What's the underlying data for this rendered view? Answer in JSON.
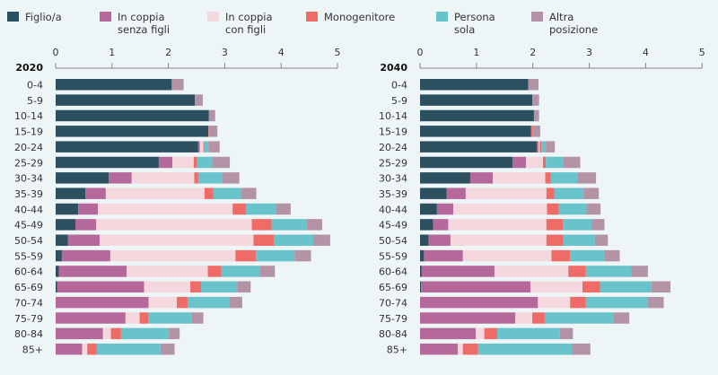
{
  "chart_data": [
    {
      "type": "bar",
      "orientation": "horizontal",
      "stacked": true,
      "title": "2020",
      "xlabel": "",
      "ylabel": "",
      "xlim": [
        0,
        5
      ],
      "xticks": [
        "0",
        "1",
        "2",
        "3",
        "4",
        "5"
      ],
      "categories": [
        "0-4",
        "5-9",
        "10-14",
        "15-19",
        "20-24",
        "25-29",
        "30-34",
        "35-39",
        "40-44",
        "45-49",
        "50-54",
        "55-59",
        "60-64",
        "65-69",
        "70-74",
        "75-79",
        "80-84",
        "85+"
      ],
      "series": [
        {
          "name": "Figlio/a",
          "values": [
            2.06,
            2.47,
            2.72,
            2.71,
            2.53,
            1.83,
            0.94,
            0.53,
            0.4,
            0.35,
            0.22,
            0.11,
            0.06,
            0.03,
            0,
            0,
            0,
            0
          ]
        },
        {
          "name": "In coppia senza figli",
          "values": [
            0,
            0,
            0,
            0,
            0.03,
            0.24,
            0.41,
            0.36,
            0.35,
            0.37,
            0.56,
            0.86,
            1.2,
            1.54,
            1.65,
            1.24,
            0.84,
            0.47
          ]
        },
        {
          "name": "In coppia con figli",
          "values": [
            0,
            0,
            0,
            0,
            0.06,
            0.38,
            1.11,
            1.75,
            2.39,
            2.76,
            2.73,
            2.22,
            1.44,
            0.82,
            0.5,
            0.25,
            0.14,
            0.09
          ]
        },
        {
          "name": "Monogenitore",
          "values": [
            0,
            0,
            0,
            0.01,
            0.02,
            0.06,
            0.07,
            0.16,
            0.24,
            0.35,
            0.36,
            0.36,
            0.24,
            0.19,
            0.19,
            0.15,
            0.18,
            0.17
          ]
        },
        {
          "name": "Persona sola",
          "values": [
            0,
            0,
            0,
            0,
            0.07,
            0.27,
            0.42,
            0.49,
            0.53,
            0.63,
            0.7,
            0.69,
            0.68,
            0.64,
            0.75,
            0.78,
            0.85,
            1.13
          ]
        },
        {
          "name": "Altra posizione",
          "values": [
            0.21,
            0.14,
            0.11,
            0.15,
            0.2,
            0.31,
            0.31,
            0.27,
            0.26,
            0.27,
            0.3,
            0.29,
            0.27,
            0.24,
            0.22,
            0.2,
            0.19,
            0.25
          ]
        }
      ]
    },
    {
      "type": "bar",
      "orientation": "horizontal",
      "stacked": true,
      "title": "2040",
      "xlabel": "",
      "ylabel": "",
      "xlim": [
        0,
        5
      ],
      "xticks": [
        "0",
        "1",
        "2",
        "3",
        "4",
        "5"
      ],
      "categories": [
        "0-4",
        "5-9",
        "10-14",
        "15-19",
        "20-24",
        "25-29",
        "30-34",
        "35-39",
        "40-44",
        "45-49",
        "50-54",
        "55-59",
        "60-64",
        "65-69",
        "70-74",
        "75-79",
        "80-84",
        "85+"
      ],
      "series": [
        {
          "name": "Figlio/a",
          "values": [
            1.92,
            1.99,
            2.02,
            1.97,
            2.07,
            1.64,
            0.89,
            0.47,
            0.3,
            0.23,
            0.15,
            0.07,
            0.03,
            0.02,
            0,
            0,
            0,
            0
          ]
        },
        {
          "name": "In coppia senza figli",
          "values": [
            0,
            0,
            0,
            0,
            0.03,
            0.24,
            0.4,
            0.34,
            0.29,
            0.27,
            0.39,
            0.69,
            1.29,
            1.94,
            2.09,
            1.69,
            0.99,
            0.67
          ]
        },
        {
          "name": "In coppia con figli",
          "values": [
            0,
            0,
            0,
            0,
            0.02,
            0.3,
            0.93,
            1.43,
            1.66,
            1.74,
            1.7,
            1.57,
            1.31,
            0.92,
            0.57,
            0.3,
            0.15,
            0.09
          ]
        },
        {
          "name": "Monogenitore",
          "values": [
            0,
            0,
            0,
            0.02,
            0.03,
            0.05,
            0.1,
            0.14,
            0.21,
            0.29,
            0.3,
            0.33,
            0.31,
            0.31,
            0.28,
            0.22,
            0.23,
            0.27
          ]
        },
        {
          "name": "Persona sola",
          "values": [
            0,
            0,
            0,
            0,
            0.08,
            0.31,
            0.47,
            0.52,
            0.5,
            0.51,
            0.56,
            0.61,
            0.8,
            0.91,
            1.1,
            1.22,
            1.11,
            1.66
          ]
        },
        {
          "name": "Altra posizione",
          "values": [
            0.18,
            0.12,
            0.09,
            0.14,
            0.16,
            0.3,
            0.33,
            0.27,
            0.24,
            0.23,
            0.23,
            0.27,
            0.3,
            0.34,
            0.28,
            0.28,
            0.23,
            0.33
          ]
        }
      ]
    }
  ],
  "legend": {
    "placement": "top",
    "items": [
      {
        "label": "Figlio/a",
        "color": "#2d5060"
      },
      {
        "label": "In coppia\nsenza figli",
        "color": "#b5699a"
      },
      {
        "label": "In coppia\ncon figli",
        "color": "#f5d7de"
      },
      {
        "label": "Monogenitore",
        "color": "#ee6b67"
      },
      {
        "label": "Persona\nsola",
        "color": "#69c3cb"
      },
      {
        "label": "Altra\nposizione",
        "color": "#b393a6"
      }
    ]
  },
  "colors": {
    "background": "#eef5f7",
    "axis": "#888888"
  }
}
